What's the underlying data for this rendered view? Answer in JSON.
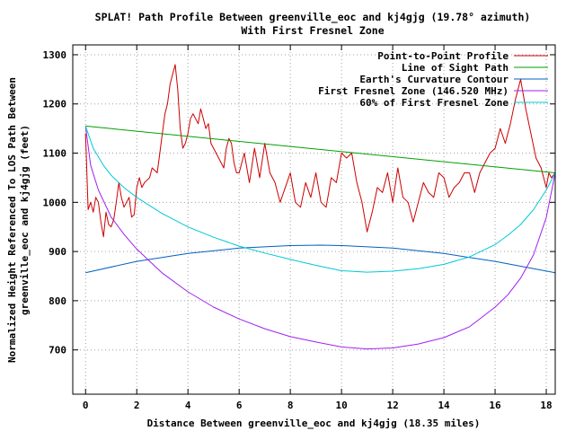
{
  "chart_data": {
    "type": "line",
    "title": "SPLAT! Path Profile Between greenville_eoc and kj4gjg (19.78° azimuth)",
    "subtitle": "With First Fresnel Zone",
    "xlabel": "Distance Between greenville_eoc and kj4gjg (18.35 miles)",
    "ylabel_line1": "Normalized Height Referenced To LOS Path Between",
    "ylabel_line2": "greenville_eoc and kj4gjg (feet)",
    "xlim": [
      -0.5,
      18.35
    ],
    "ylim": [
      610,
      1320
    ],
    "x_ticks": [
      0,
      2,
      4,
      6,
      8,
      10,
      12,
      14,
      16,
      18
    ],
    "y_ticks": [
      700,
      800,
      900,
      1000,
      1100,
      1200,
      1300
    ],
    "grid": true,
    "legend_position": "top-right",
    "series": [
      {
        "name": "Point-to-Point Profile",
        "color": "#cc0000",
        "x": [
          0,
          0.1,
          0.2,
          0.3,
          0.4,
          0.5,
          0.6,
          0.7,
          0.8,
          0.9,
          1.0,
          1.1,
          1.2,
          1.3,
          1.4,
          1.5,
          1.6,
          1.7,
          1.8,
          1.9,
          2.0,
          2.1,
          2.2,
          2.3,
          2.4,
          2.5,
          2.6,
          2.7,
          2.8,
          2.9,
          3.0,
          3.1,
          3.2,
          3.3,
          3.4,
          3.5,
          3.6,
          3.7,
          3.8,
          3.9,
          4.0,
          4.1,
          4.2,
          4.3,
          4.4,
          4.5,
          4.6,
          4.7,
          4.8,
          4.9,
          5.0,
          5.1,
          5.2,
          5.3,
          5.4,
          5.5,
          5.6,
          5.7,
          5.8,
          5.9,
          6.0,
          6.2,
          6.4,
          6.6,
          6.8,
          7.0,
          7.2,
          7.4,
          7.6,
          7.8,
          8.0,
          8.2,
          8.4,
          8.6,
          8.8,
          9.0,
          9.2,
          9.4,
          9.6,
          9.8,
          10.0,
          10.2,
          10.4,
          10.6,
          10.8,
          11.0,
          11.2,
          11.4,
          11.6,
          11.8,
          12.0,
          12.2,
          12.4,
          12.6,
          12.8,
          13.0,
          13.2,
          13.4,
          13.6,
          13.8,
          14.0,
          14.2,
          14.4,
          14.6,
          14.8,
          15.0,
          15.2,
          15.4,
          15.6,
          15.8,
          16.0,
          16.2,
          16.4,
          16.6,
          16.8,
          17.0,
          17.2,
          17.4,
          17.6,
          17.8,
          18.0,
          18.1,
          18.2,
          18.35
        ],
        "y": [
          1140,
          985,
          1000,
          980,
          1010,
          1000,
          960,
          930,
          980,
          955,
          950,
          965,
          1000,
          1040,
          1010,
          990,
          1000,
          1010,
          970,
          975,
          1030,
          1050,
          1030,
          1040,
          1045,
          1050,
          1070,
          1065,
          1060,
          1100,
          1140,
          1180,
          1200,
          1240,
          1260,
          1280,
          1230,
          1150,
          1110,
          1120,
          1140,
          1170,
          1180,
          1170,
          1160,
          1190,
          1170,
          1150,
          1160,
          1120,
          1110,
          1100,
          1090,
          1080,
          1070,
          1110,
          1130,
          1120,
          1080,
          1060,
          1060,
          1100,
          1040,
          1110,
          1050,
          1120,
          1060,
          1040,
          1000,
          1030,
          1060,
          1000,
          990,
          1040,
          1010,
          1060,
          1000,
          990,
          1050,
          1040,
          1100,
          1090,
          1100,
          1040,
          1000,
          940,
          980,
          1030,
          1020,
          1060,
          1000,
          1070,
          1010,
          1000,
          960,
          1000,
          1040,
          1020,
          1010,
          1060,
          1050,
          1010,
          1030,
          1040,
          1060,
          1060,
          1020,
          1060,
          1080,
          1100,
          1110,
          1150,
          1120,
          1160,
          1210,
          1250,
          1190,
          1140,
          1090,
          1070,
          1030,
          1060,
          1050,
          1060
        ]
      },
      {
        "name": "Line of Sight Path",
        "color": "#00a000",
        "x": [
          0,
          18.35
        ],
        "y": [
          1155,
          1060
        ]
      },
      {
        "name": "Earth's Curvature Contour",
        "color": "#0060c0",
        "x": [
          0,
          2,
          4,
          6,
          8,
          9.175,
          10,
          12,
          14,
          16,
          18.35
        ],
        "y": [
          857,
          880,
          896,
          907,
          912,
          913,
          912,
          907,
          896,
          880,
          857
        ]
      },
      {
        "name": "First Fresnel Zone (146.520 MHz)",
        "color": "#a020f0",
        "x": [
          0,
          0.2,
          0.5,
          1,
          1.5,
          2,
          3,
          4,
          5,
          6,
          7,
          8,
          9,
          10,
          11,
          12,
          13,
          14,
          15,
          16,
          16.5,
          17,
          17.5,
          18,
          18.35
        ],
        "y": [
          1155,
          1075,
          1025,
          970,
          935,
          905,
          856,
          818,
          787,
          763,
          743,
          727,
          716,
          706,
          702,
          704,
          712,
          725,
          747,
          787,
          812,
          846,
          893,
          969,
          1060
        ]
      },
      {
        "name": "60% of First Fresnel Zone",
        "color": "#00c8d8",
        "x": [
          0,
          0.3,
          0.7,
          1,
          1.5,
          2,
          3,
          4,
          5,
          6,
          7,
          8,
          9,
          10,
          11,
          12,
          13,
          14,
          15,
          16,
          16.5,
          17,
          17.5,
          18,
          18.35
        ],
        "y": [
          1155,
          1110,
          1075,
          1055,
          1030,
          1010,
          977,
          950,
          929,
          911,
          897,
          884,
          872,
          861,
          858,
          860,
          865,
          874,
          889,
          914,
          933,
          955,
          985,
          1025,
          1060
        ]
      }
    ]
  }
}
